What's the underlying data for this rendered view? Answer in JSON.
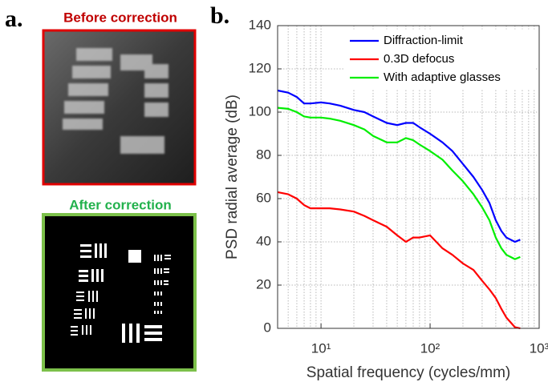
{
  "panel_a": {
    "label": "a.",
    "top_title": "Before correction",
    "bottom_title": "After correction"
  },
  "chart_data": {
    "type": "line",
    "panel_label": "b.",
    "xlabel": "Spatial frequency (cycles/mm)",
    "ylabel": "PSD radial average (dB)",
    "xscale": "log",
    "xlim": [
      4,
      1000
    ],
    "ylim": [
      0,
      140
    ],
    "xticks": [
      {
        "value": 10,
        "label": "10¹"
      },
      {
        "value": 100,
        "label": "10²"
      },
      {
        "value": 1000,
        "label": "10³"
      }
    ],
    "x_minor_grid": [
      5,
      6,
      7,
      8,
      9,
      20,
      30,
      40,
      50,
      60,
      70,
      80,
      90,
      200,
      300,
      400,
      500,
      600,
      700,
      800,
      900
    ],
    "yticks": [
      0,
      20,
      40,
      60,
      80,
      100,
      120,
      140
    ],
    "grid": true,
    "legend": "upper right",
    "x": [
      4,
      5,
      6,
      7,
      8,
      10,
      12,
      15,
      20,
      25,
      30,
      40,
      50,
      60,
      70,
      80,
      100,
      130,
      160,
      200,
      250,
      300,
      350,
      400,
      450,
      500,
      600,
      670
    ],
    "series": [
      {
        "name": "Diffraction-limit",
        "color": "#0000ff",
        "values": [
          110,
          109,
          107,
          104,
          104,
          104.5,
          104,
          103,
          101,
          100,
          98,
          95,
          94,
          95,
          95,
          93,
          90,
          86,
          82,
          76,
          70,
          64,
          58,
          50,
          45,
          42,
          40,
          41
        ]
      },
      {
        "name": "0.3D defocus",
        "color": "#ff0000",
        "values": [
          63,
          62,
          60,
          57,
          55.5,
          55.5,
          55.5,
          55,
          54,
          52,
          50,
          47,
          43,
          40,
          42,
          42,
          43,
          37,
          34,
          30,
          27,
          22,
          18,
          14,
          9,
          5,
          0.5,
          0
        ]
      },
      {
        "name": "With adaptive glasses",
        "color": "#00ee00",
        "values": [
          102,
          101.5,
          100,
          98,
          97.5,
          97.5,
          97,
          96,
          94,
          92,
          89,
          86,
          86,
          88,
          87,
          85,
          82,
          78,
          73,
          68,
          62,
          56,
          50,
          42,
          37,
          34,
          32,
          33
        ]
      }
    ]
  }
}
